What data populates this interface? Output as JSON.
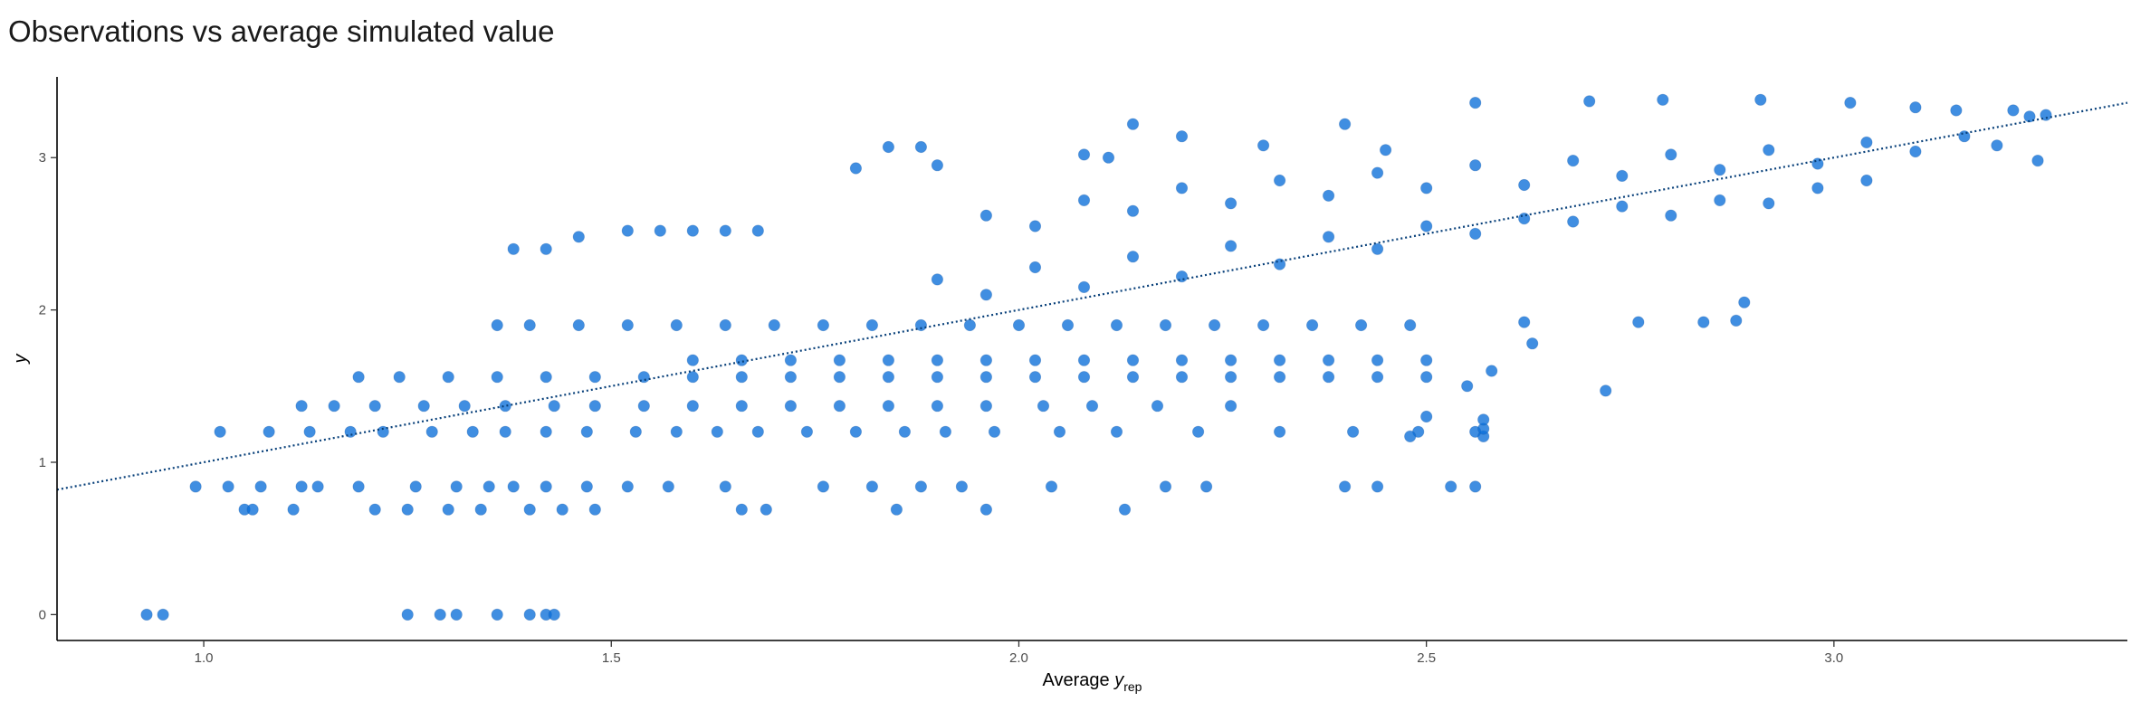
{
  "title": "Observations vs average simulated value",
  "chart_data": {
    "type": "scatter",
    "title": "Observations vs average simulated value",
    "xlabel": "Average y_rep",
    "xlabel_parts": {
      "main": "Average ",
      "italic": "y",
      "sub": "rep"
    },
    "ylabel": "y",
    "xlim": [
      0.82,
      3.36
    ],
    "ylim": [
      -0.17,
      3.53
    ],
    "x_ticks": [
      1.0,
      1.5,
      2.0,
      2.5,
      3.0
    ],
    "x_tick_labels": [
      "1.0",
      "1.5",
      "2.0",
      "2.5",
      "3.0"
    ],
    "y_ticks": [
      0,
      1,
      2,
      3
    ],
    "y_tick_labels": [
      "0",
      "1",
      "2",
      "3"
    ],
    "grid": false,
    "reference_line": {
      "style": "dotted",
      "color": "#08407a",
      "intercept": 0.0,
      "slope": 1.0
    },
    "point_color": "#0a6ed8",
    "series": [
      {
        "points": [
          [
            0.93,
            0.0
          ],
          [
            0.95,
            0.0
          ],
          [
            1.25,
            0.0
          ],
          [
            1.29,
            0.0
          ],
          [
            1.31,
            0.0
          ],
          [
            1.36,
            0.0
          ],
          [
            1.4,
            0.0
          ],
          [
            1.42,
            0.0
          ],
          [
            1.43,
            0.0
          ],
          [
            0.99,
            0.84
          ],
          [
            1.03,
            0.84
          ],
          [
            1.07,
            0.84
          ],
          [
            1.12,
            0.84
          ],
          [
            1.14,
            0.84
          ],
          [
            1.19,
            0.84
          ],
          [
            1.26,
            0.84
          ],
          [
            1.31,
            0.84
          ],
          [
            1.35,
            0.84
          ],
          [
            1.38,
            0.84
          ],
          [
            1.42,
            0.84
          ],
          [
            1.47,
            0.84
          ],
          [
            1.52,
            0.84
          ],
          [
            1.57,
            0.84
          ],
          [
            1.64,
            0.84
          ],
          [
            1.76,
            0.84
          ],
          [
            1.82,
            0.84
          ],
          [
            1.88,
            0.84
          ],
          [
            1.93,
            0.84
          ],
          [
            2.04,
            0.84
          ],
          [
            2.18,
            0.84
          ],
          [
            2.23,
            0.84
          ],
          [
            2.4,
            0.84
          ],
          [
            2.44,
            0.84
          ],
          [
            2.53,
            0.84
          ],
          [
            2.56,
            0.84
          ],
          [
            1.05,
            0.69
          ],
          [
            1.06,
            0.69
          ],
          [
            1.11,
            0.69
          ],
          [
            1.21,
            0.69
          ],
          [
            1.25,
            0.69
          ],
          [
            1.3,
            0.69
          ],
          [
            1.34,
            0.69
          ],
          [
            1.4,
            0.69
          ],
          [
            1.44,
            0.69
          ],
          [
            1.48,
            0.69
          ],
          [
            1.66,
            0.69
          ],
          [
            1.69,
            0.69
          ],
          [
            1.85,
            0.69
          ],
          [
            1.96,
            0.69
          ],
          [
            2.13,
            0.69
          ],
          [
            1.02,
            1.2
          ],
          [
            1.08,
            1.2
          ],
          [
            1.13,
            1.2
          ],
          [
            1.18,
            1.2
          ],
          [
            1.22,
            1.2
          ],
          [
            1.28,
            1.2
          ],
          [
            1.33,
            1.2
          ],
          [
            1.37,
            1.2
          ],
          [
            1.42,
            1.2
          ],
          [
            1.47,
            1.2
          ],
          [
            1.53,
            1.2
          ],
          [
            1.58,
            1.2
          ],
          [
            1.63,
            1.2
          ],
          [
            1.68,
            1.2
          ],
          [
            1.74,
            1.2
          ],
          [
            1.8,
            1.2
          ],
          [
            1.86,
            1.2
          ],
          [
            1.91,
            1.2
          ],
          [
            1.97,
            1.2
          ],
          [
            2.05,
            1.2
          ],
          [
            2.12,
            1.2
          ],
          [
            2.22,
            1.2
          ],
          [
            2.32,
            1.2
          ],
          [
            2.41,
            1.2
          ],
          [
            2.49,
            1.2
          ],
          [
            2.56,
            1.2
          ],
          [
            1.12,
            1.37
          ],
          [
            1.16,
            1.37
          ],
          [
            1.21,
            1.37
          ],
          [
            1.27,
            1.37
          ],
          [
            1.32,
            1.37
          ],
          [
            1.37,
            1.37
          ],
          [
            1.43,
            1.37
          ],
          [
            1.48,
            1.37
          ],
          [
            1.54,
            1.37
          ],
          [
            1.6,
            1.37
          ],
          [
            1.66,
            1.37
          ],
          [
            1.72,
            1.37
          ],
          [
            1.78,
            1.37
          ],
          [
            1.84,
            1.37
          ],
          [
            1.9,
            1.37
          ],
          [
            1.96,
            1.37
          ],
          [
            2.03,
            1.37
          ],
          [
            2.09,
            1.37
          ],
          [
            2.17,
            1.37
          ],
          [
            2.26,
            1.37
          ],
          [
            1.19,
            1.56
          ],
          [
            1.24,
            1.56
          ],
          [
            1.3,
            1.56
          ],
          [
            1.36,
            1.56
          ],
          [
            1.42,
            1.56
          ],
          [
            1.48,
            1.56
          ],
          [
            1.54,
            1.56
          ],
          [
            1.6,
            1.56
          ],
          [
            1.66,
            1.56
          ],
          [
            1.72,
            1.56
          ],
          [
            1.78,
            1.56
          ],
          [
            1.84,
            1.56
          ],
          [
            1.9,
            1.56
          ],
          [
            1.96,
            1.56
          ],
          [
            2.02,
            1.56
          ],
          [
            2.08,
            1.56
          ],
          [
            2.14,
            1.56
          ],
          [
            2.2,
            1.56
          ],
          [
            2.26,
            1.56
          ],
          [
            2.32,
            1.56
          ],
          [
            2.38,
            1.56
          ],
          [
            2.44,
            1.56
          ],
          [
            2.5,
            1.56
          ],
          [
            1.6,
            1.67
          ],
          [
            1.66,
            1.67
          ],
          [
            1.72,
            1.67
          ],
          [
            1.78,
            1.67
          ],
          [
            1.84,
            1.67
          ],
          [
            1.9,
            1.67
          ],
          [
            1.96,
            1.67
          ],
          [
            2.02,
            1.67
          ],
          [
            2.08,
            1.67
          ],
          [
            2.14,
            1.67
          ],
          [
            2.2,
            1.67
          ],
          [
            2.26,
            1.67
          ],
          [
            2.32,
            1.67
          ],
          [
            2.38,
            1.67
          ],
          [
            2.44,
            1.67
          ],
          [
            2.5,
            1.67
          ],
          [
            1.36,
            1.9
          ],
          [
            1.4,
            1.9
          ],
          [
            1.46,
            1.9
          ],
          [
            1.52,
            1.9
          ],
          [
            1.58,
            1.9
          ],
          [
            1.64,
            1.9
          ],
          [
            1.7,
            1.9
          ],
          [
            1.76,
            1.9
          ],
          [
            1.82,
            1.9
          ],
          [
            1.88,
            1.9
          ],
          [
            1.94,
            1.9
          ],
          [
            2.0,
            1.9
          ],
          [
            2.06,
            1.9
          ],
          [
            2.12,
            1.9
          ],
          [
            2.18,
            1.9
          ],
          [
            2.24,
            1.9
          ],
          [
            2.3,
            1.9
          ],
          [
            2.36,
            1.9
          ],
          [
            2.42,
            1.9
          ],
          [
            2.48,
            1.9
          ],
          [
            1.38,
            2.4
          ],
          [
            1.42,
            2.4
          ],
          [
            1.46,
            2.48
          ],
          [
            1.52,
            2.52
          ],
          [
            1.56,
            2.52
          ],
          [
            1.6,
            2.52
          ],
          [
            1.64,
            2.52
          ],
          [
            1.68,
            2.52
          ],
          [
            1.8,
            2.93
          ],
          [
            1.84,
            3.07
          ],
          [
            1.88,
            3.07
          ],
          [
            1.9,
            2.95
          ],
          [
            2.08,
            3.02
          ],
          [
            2.11,
            3.0
          ],
          [
            2.14,
            3.22
          ],
          [
            2.2,
            3.14
          ],
          [
            2.3,
            3.08
          ],
          [
            2.4,
            3.22
          ],
          [
            2.45,
            3.05
          ],
          [
            2.56,
            3.36
          ],
          [
            2.7,
            3.37
          ],
          [
            2.79,
            3.38
          ],
          [
            2.91,
            3.38
          ],
          [
            3.02,
            3.36
          ],
          [
            3.1,
            3.33
          ],
          [
            3.15,
            3.31
          ],
          [
            3.22,
            3.31
          ],
          [
            3.24,
            3.27
          ],
          [
            3.25,
            2.98
          ],
          [
            3.26,
            3.28
          ],
          [
            1.96,
            2.62
          ],
          [
            2.02,
            2.55
          ],
          [
            2.08,
            2.72
          ],
          [
            2.14,
            2.65
          ],
          [
            2.2,
            2.8
          ],
          [
            2.26,
            2.7
          ],
          [
            2.32,
            2.85
          ],
          [
            2.38,
            2.75
          ],
          [
            2.44,
            2.9
          ],
          [
            2.5,
            2.8
          ],
          [
            2.56,
            2.95
          ],
          [
            2.62,
            2.82
          ],
          [
            2.68,
            2.98
          ],
          [
            2.74,
            2.88
          ],
          [
            2.8,
            3.02
          ],
          [
            2.86,
            2.92
          ],
          [
            2.92,
            3.05
          ],
          [
            2.98,
            2.96
          ],
          [
            3.04,
            3.1
          ],
          [
            3.1,
            3.04
          ],
          [
            3.16,
            3.14
          ],
          [
            3.2,
            3.08
          ],
          [
            1.9,
            2.2
          ],
          [
            1.96,
            2.1
          ],
          [
            2.02,
            2.28
          ],
          [
            2.08,
            2.15
          ],
          [
            2.14,
            2.35
          ],
          [
            2.2,
            2.22
          ],
          [
            2.26,
            2.42
          ],
          [
            2.32,
            2.3
          ],
          [
            2.38,
            2.48
          ],
          [
            2.44,
            2.4
          ],
          [
            2.5,
            2.55
          ],
          [
            2.56,
            2.5
          ],
          [
            2.62,
            2.6
          ],
          [
            2.68,
            2.58
          ],
          [
            2.74,
            2.68
          ],
          [
            2.8,
            2.62
          ],
          [
            2.86,
            2.72
          ],
          [
            2.92,
            2.7
          ],
          [
            2.98,
            2.8
          ],
          [
            3.04,
            2.85
          ],
          [
            2.55,
            1.5
          ],
          [
            2.63,
            1.78
          ],
          [
            2.72,
            1.47
          ],
          [
            2.76,
            1.92
          ],
          [
            2.84,
            1.92
          ],
          [
            2.88,
            1.93
          ],
          [
            2.89,
            2.05
          ],
          [
            2.57,
            1.17
          ],
          [
            2.57,
            1.22
          ],
          [
            2.57,
            1.28
          ],
          [
            2.58,
            1.6
          ],
          [
            2.62,
            1.92
          ],
          [
            2.5,
            1.3
          ],
          [
            2.48,
            1.17
          ]
        ]
      }
    ]
  }
}
